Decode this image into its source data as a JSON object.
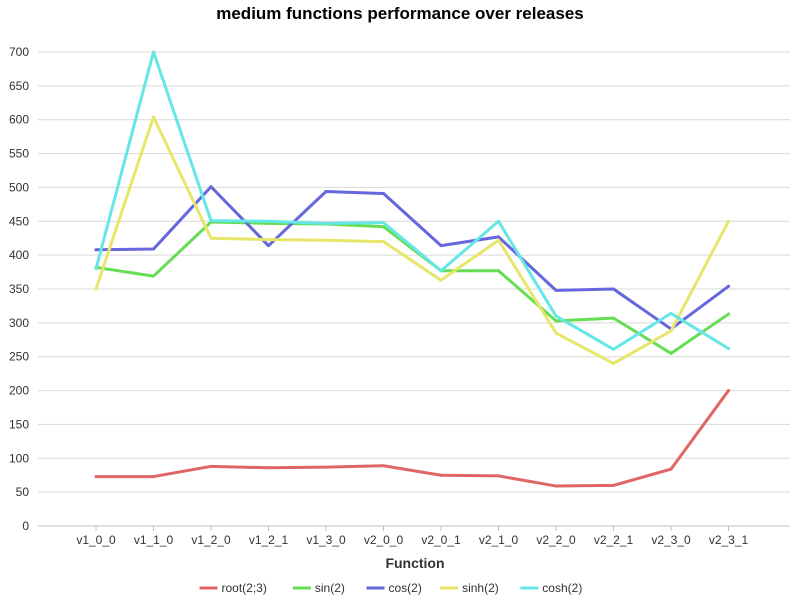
{
  "chart_data": {
    "type": "line",
    "title": "medium functions performance over releases",
    "xlabel": "Function",
    "ylabel": "",
    "ylim": [
      0,
      700
    ],
    "yticks": [
      0,
      50,
      100,
      150,
      200,
      250,
      300,
      350,
      400,
      450,
      500,
      550,
      600,
      650,
      700
    ],
    "grid": true,
    "legend_position": "bottom",
    "categories": [
      "v1_0_0",
      "v1_1_0",
      "v1_2_0",
      "v1_2_1",
      "v1_3_0",
      "v2_0_0",
      "v2_0_1",
      "v2_1_0",
      "v2_2_0",
      "v2_2_1",
      "v2_3_0",
      "v2_3_1"
    ],
    "series": [
      {
        "name": "root(2;3)",
        "color": "#e06666",
        "values": [
          73,
          73,
          88,
          86,
          87,
          89,
          75,
          74,
          59,
          60,
          84,
          200
        ]
      },
      {
        "name": "sin(2)",
        "color": "#66dd55",
        "values": [
          382,
          369,
          449,
          447,
          446,
          442,
          377,
          377,
          303,
          307,
          255,
          313
        ]
      },
      {
        "name": "cos(2)",
        "color": "#6666dd",
        "values": [
          408,
          409,
          501,
          414,
          494,
          491,
          414,
          427,
          348,
          350,
          291,
          354
        ]
      },
      {
        "name": "sinh(2)",
        "color": "#e6e66a",
        "values": [
          350,
          604,
          425,
          423,
          422,
          420,
          363,
          422,
          285,
          240,
          288,
          450
        ]
      },
      {
        "name": "cosh(2)",
        "color": "#66e6e6",
        "values": [
          380,
          700,
          451,
          450,
          447,
          448,
          377,
          450,
          310,
          261,
          314,
          262
        ]
      }
    ]
  }
}
